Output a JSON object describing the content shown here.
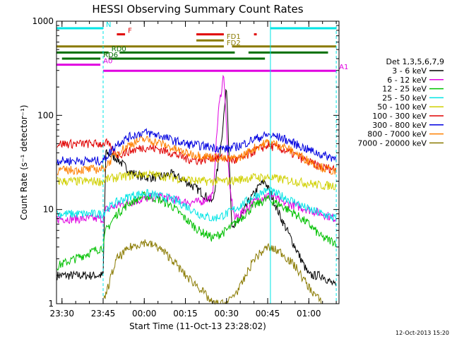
{
  "chart_data": {
    "type": "line",
    "title": "HESSI Observing Summary Count Rates",
    "xlabel": "Start Time (11-Oct-13 23:28:02)",
    "ylabel": "Count Rate (s⁻¹ detector⁻¹)",
    "y_scale": "log",
    "ylim": [
      1,
      1000
    ],
    "xlim_minutes_label": "minutes after 23:28:02",
    "x_range": [
      "23:28",
      "01:11"
    ],
    "x_ticks": [
      "23:30",
      "23:45",
      "00:00",
      "00:15",
      "00:30",
      "00:45",
      "01:00"
    ],
    "y_ticks": [
      "1",
      "10",
      "100",
      "1000"
    ],
    "legend_title": "Det 1,3,5,6,7,9",
    "legend_placement": "right",
    "grid": false,
    "timestamp": "12-Oct-2013 15:20",
    "flag_bars": [
      {
        "label": "N",
        "color": "#00e5e5",
        "segments": [
          [
            "23:28",
            "23:45"
          ],
          [
            "00:46",
            "01:10"
          ]
        ]
      },
      {
        "label": "F",
        "color": "#e00000",
        "segments": [
          [
            "23:50",
            "23:53"
          ],
          [
            "00:19",
            "00:29"
          ],
          [
            "00:40",
            "00:41"
          ]
        ]
      },
      {
        "label": "FD1",
        "color": "#8a7a00",
        "segments": [
          [
            "00:19",
            "00:29"
          ]
        ]
      },
      {
        "label": "FD2",
        "color": "#8a7a00",
        "segments": [
          [
            "23:28",
            "00:29"
          ],
          [
            "00:32",
            "01:10"
          ]
        ]
      },
      {
        "label": "RD0",
        "color": "#007000",
        "segments": [
          [
            "23:28",
            "23:47"
          ],
          [
            "23:51",
            "00:33"
          ],
          [
            "00:38",
            "01:07"
          ]
        ]
      },
      {
        "label": "RD6",
        "color": "#007000",
        "segments": [
          [
            "23:30",
            "23:44"
          ],
          [
            "23:47",
            "00:44"
          ]
        ]
      },
      {
        "label": "A0",
        "color": "#e000e0",
        "segments": [
          [
            "23:28",
            "23:44"
          ]
        ]
      },
      {
        "label": "A1",
        "color": "#e000e0",
        "segments": [
          [
            "23:45",
            "01:10"
          ]
        ]
      }
    ],
    "vertical_markers": [
      {
        "time": "23:28",
        "color": "#00e5e5",
        "style": "solid"
      },
      {
        "time": "23:45",
        "color": "#00e5e5",
        "style": "dashed"
      },
      {
        "time": "00:46",
        "color": "#00e5e5",
        "style": "solid"
      },
      {
        "time": "01:10",
        "color": "#00e5e5",
        "style": "dashed"
      }
    ],
    "series": [
      {
        "name": "3 - 6 keV",
        "color": "#000000",
        "t": [
          "23:28",
          "23:40",
          "23:45",
          "23:46",
          "23:50",
          "23:55",
          "00:00",
          "00:05",
          "00:10",
          "00:15",
          "00:20",
          "00:25",
          "00:28",
          "00:30",
          "00:32",
          "00:35",
          "00:38",
          "00:42",
          "00:44",
          "00:46",
          "00:50",
          "00:55",
          "01:00",
          "01:05",
          "01:10"
        ],
        "v": [
          2,
          2,
          2,
          40,
          35,
          25,
          22,
          22,
          24,
          20,
          16,
          12,
          50,
          200,
          6,
          8,
          12,
          18,
          20,
          15,
          8,
          4,
          2,
          2,
          1.5
        ]
      },
      {
        "name": "6 - 12 keV",
        "color": "#e000e0",
        "t": [
          "23:28",
          "23:40",
          "23:45",
          "23:46",
          "23:50",
          "23:55",
          "00:00",
          "00:05",
          "00:10",
          "00:15",
          "00:20",
          "00:25",
          "00:27",
          "00:29",
          "00:31",
          "00:33",
          "00:35",
          "00:40",
          "00:44",
          "00:47",
          "00:50",
          "00:55",
          "01:00",
          "01:05",
          "01:10"
        ],
        "v": [
          8,
          8,
          8,
          10,
          11,
          12,
          13,
          14,
          13,
          12,
          12,
          14,
          110,
          280,
          18,
          8,
          9,
          12,
          14,
          14,
          12,
          11,
          10,
          9,
          8
        ]
      },
      {
        "name": "12 - 25 keV",
        "color": "#00c000",
        "t": [
          "23:28",
          "23:45",
          "23:46",
          "23:50",
          "23:55",
          "00:00",
          "00:05",
          "00:10",
          "00:15",
          "00:20",
          "00:25",
          "00:30",
          "00:35",
          "00:40",
          "00:45",
          "00:50",
          "00:55",
          "01:00",
          "01:05",
          "01:10"
        ],
        "v": [
          2.5,
          4,
          6,
          9,
          12,
          14,
          13,
          11,
          8,
          6,
          5,
          6,
          8,
          11,
          13,
          11,
          9,
          7,
          5,
          4.5
        ]
      },
      {
        "name": "25 - 50 keV",
        "color": "#00e5e5",
        "t": [
          "23:28",
          "23:45",
          "23:46",
          "23:50",
          "23:55",
          "00:00",
          "00:05",
          "00:10",
          "00:15",
          "00:20",
          "00:25",
          "00:30",
          "00:35",
          "00:40",
          "00:45",
          "00:50",
          "00:55",
          "01:00",
          "01:05",
          "01:10"
        ],
        "v": [
          9,
          9,
          10,
          12,
          14,
          15,
          14,
          13,
          11,
          9,
          8,
          9,
          11,
          14,
          16,
          14,
          12,
          10,
          9,
          8
        ]
      },
      {
        "name": "50 - 100 keV",
        "color": "#d0d000",
        "t": [
          "23:28",
          "23:45",
          "23:46",
          "23:50",
          "23:55",
          "00:00",
          "00:05",
          "00:10",
          "00:15",
          "00:20",
          "00:25",
          "00:30",
          "00:35",
          "00:40",
          "00:45",
          "00:50",
          "00:55",
          "01:00",
          "01:05",
          "01:10"
        ],
        "v": [
          20,
          20,
          21,
          22,
          23,
          24,
          23,
          22,
          21,
          20,
          20,
          20,
          21,
          22,
          22,
          21,
          20,
          19,
          18,
          18
        ]
      },
      {
        "name": "100 - 300 keV",
        "color": "#e00000",
        "t": [
          "23:28",
          "23:45",
          "23:46",
          "23:50",
          "23:55",
          "00:00",
          "00:05",
          "00:10",
          "00:15",
          "00:20",
          "00:25",
          "00:30",
          "00:33",
          "00:37",
          "00:40",
          "00:45",
          "00:50",
          "00:55",
          "01:00",
          "01:05",
          "01:10"
        ],
        "v": [
          50,
          50,
          52,
          38,
          42,
          46,
          44,
          40,
          35,
          33,
          36,
          35,
          33,
          36,
          42,
          48,
          44,
          38,
          32,
          28,
          27
        ]
      },
      {
        "name": "300 - 800 keV",
        "color": "#0000e0",
        "t": [
          "23:28",
          "23:45",
          "23:50",
          "23:55",
          "00:00",
          "00:05",
          "00:10",
          "00:15",
          "00:20",
          "00:25",
          "00:30",
          "00:35",
          "00:40",
          "00:45",
          "00:50",
          "00:55",
          "01:00",
          "01:05",
          "01:10"
        ],
        "v": [
          33,
          33,
          50,
          60,
          66,
          62,
          55,
          50,
          48,
          46,
          44,
          48,
          56,
          62,
          58,
          50,
          43,
          38,
          35
        ]
      },
      {
        "name": "800 - 7000 keV",
        "color": "#ff8000",
        "t": [
          "23:28",
          "23:45",
          "23:50",
          "23:55",
          "00:00",
          "00:05",
          "00:10",
          "00:15",
          "00:20",
          "00:25",
          "00:30",
          "00:35",
          "00:40",
          "00:45",
          "00:50",
          "00:55",
          "01:00",
          "01:05",
          "01:10"
        ],
        "v": [
          26,
          27,
          40,
          50,
          56,
          52,
          45,
          40,
          38,
          36,
          34,
          36,
          45,
          52,
          48,
          40,
          33,
          28,
          25
        ]
      },
      {
        "name": "7000 - 20000 keV",
        "color": "#8a7a00",
        "t": [
          "23:45",
          "23:48",
          "23:50",
          "23:55",
          "00:00",
          "00:05",
          "00:10",
          "00:15",
          "00:20",
          "00:25",
          "00:30",
          "00:35",
          "00:40",
          "00:45",
          "00:50",
          "00:55",
          "01:00",
          "01:05"
        ],
        "v": [
          1,
          2,
          3,
          4,
          4.5,
          4,
          3,
          2,
          1.5,
          1,
          1,
          1.5,
          3,
          4,
          3.5,
          2.5,
          1.5,
          1
        ]
      }
    ]
  }
}
